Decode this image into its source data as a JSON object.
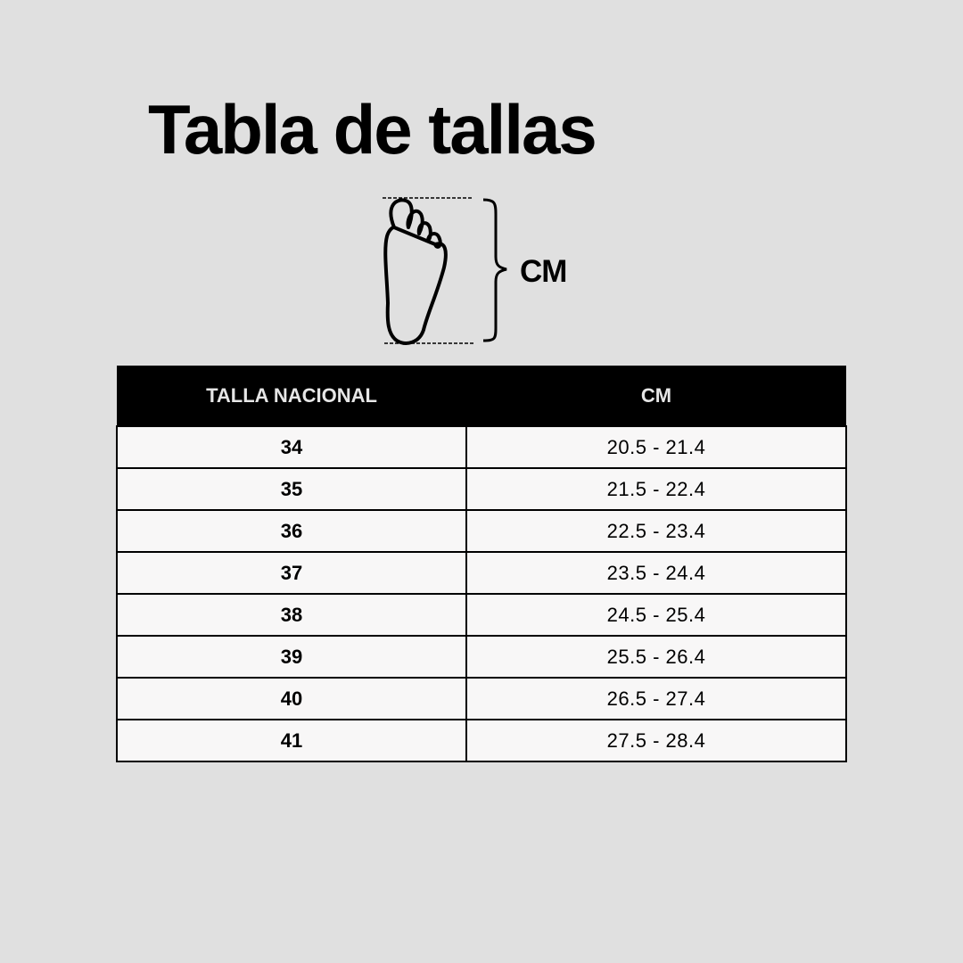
{
  "title": "Tabla de tallas",
  "diagram": {
    "icon": "foot-outline-icon",
    "measure_label": "CM"
  },
  "table": {
    "headers": [
      "TALLA NACIONAL",
      "CM"
    ],
    "rows": [
      {
        "size": "34",
        "cm": "20.5 - 21.4"
      },
      {
        "size": "35",
        "cm": "21.5 - 22.4"
      },
      {
        "size": "36",
        "cm": "22.5 - 23.4"
      },
      {
        "size": "37",
        "cm": "23.5 - 24.4"
      },
      {
        "size": "38",
        "cm": "24.5 - 25.4"
      },
      {
        "size": "39",
        "cm": "25.5 - 26.4"
      },
      {
        "size": "40",
        "cm": "26.5 - 27.4"
      },
      {
        "size": "41",
        "cm": "27.5 - 28.4"
      }
    ]
  },
  "colors": {
    "background": "#e0e0e0",
    "header": "#000000",
    "row": "#f8f7f7"
  }
}
